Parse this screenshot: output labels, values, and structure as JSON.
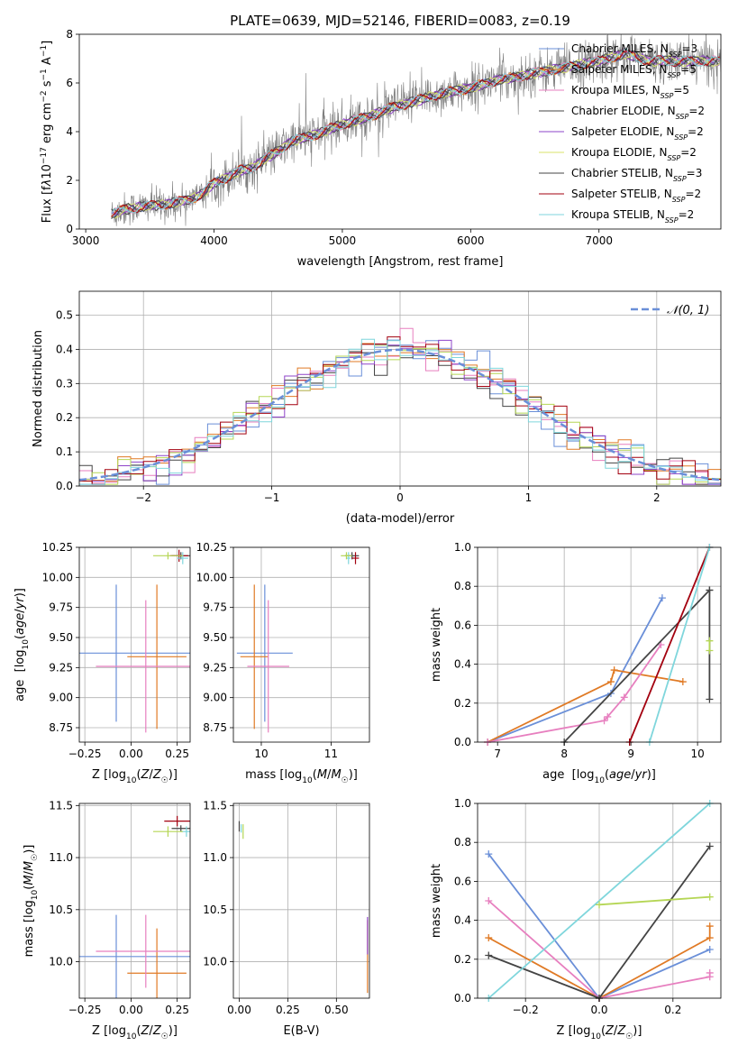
{
  "figure": {
    "title": "PLATE=0639, MJD=52146, FIBERID=0083, z=0.19",
    "colors": {
      "chabrier_miles": "#6a8fd8",
      "salpeter_miles": "#e07a25",
      "kroupa_miles": "#e77fbf",
      "elodie": "#b5d655",
      "stelib_chabrier": "#444444",
      "stelib_salpeter": "#a3000f",
      "stelib_kroupa": "#7fd6dc",
      "data": "#7f7f7f"
    }
  },
  "chart_data": [
    {
      "id": "spectrum",
      "type": "line",
      "title": "PLATE=0639, MJD=52146, FIBERID=0083, z=0.19",
      "xlabel": "wavelength [Angstrom, rest frame]",
      "ylabel_html": "Flux [f<tspan font-style='italic'>λ</tspan>10<tspan baseline-shift='super' font-size='9'>−17</tspan> erg cm<tspan baseline-shift='super' font-size='9'>−2</tspan> s<tspan baseline-shift='super' font-size='9'>−1</tspan> A<tspan baseline-shift='super' font-size='9'>−1</tspan>]",
      "xlim": [
        2950,
        7950
      ],
      "ylim": [
        0,
        8
      ],
      "xticks": [
        3000,
        4000,
        5000,
        6000,
        7000
      ],
      "yticks": [
        0,
        2,
        4,
        6,
        8
      ],
      "legend": [
        {
          "label": "Chabrier MILES, N",
          "sub": "SSP",
          "tail": "=3",
          "color": "#6a8fd8"
        },
        {
          "label": "Salpeter MILES, N",
          "sub": "SSP",
          "tail": "=5",
          "color": "#e07a25"
        },
        {
          "label": "Kroupa MILES, N",
          "sub": "SSP",
          "tail": "=5",
          "color": "#e77fbf"
        },
        {
          "label": "Chabrier ELODIE, N",
          "sub": "SSP",
          "tail": "=2",
          "color": "#444444"
        },
        {
          "label": "Salpeter ELODIE, N",
          "sub": "SSP",
          "tail": "=2",
          "color": "#8e44c9"
        },
        {
          "label": "Kroupa ELODIE, N",
          "sub": "SSP",
          "tail": "=2",
          "color": "#d9e36a"
        },
        {
          "label": "Chabrier STELIB, N",
          "sub": "SSP",
          "tail": "=3",
          "color": "#444444"
        },
        {
          "label": "Salpeter STELIB, N",
          "sub": "SSP",
          "tail": "=2",
          "color": "#a3000f"
        },
        {
          "label": "Kroupa STELIB, N",
          "sub": "SSP",
          "tail": "=2",
          "color": "#7fd6dc"
        }
      ],
      "continuum": {
        "x": [
          3200,
          3300,
          3400,
          3500,
          3600,
          3700,
          3800,
          3900,
          4000,
          4100,
          4200,
          4300,
          4400,
          4500,
          4600,
          4800,
          5000,
          5200,
          5400,
          5600,
          5800,
          6000,
          6200,
          6400,
          6600,
          6800,
          7000,
          7200,
          7400
        ],
        "y": [
          0.6,
          0.8,
          0.9,
          0.95,
          1.0,
          1.1,
          1.2,
          1.4,
          1.9,
          2.1,
          2.4,
          2.5,
          2.9,
          3.2,
          3.6,
          3.9,
          4.3,
          4.6,
          5.0,
          5.3,
          5.6,
          5.8,
          6.1,
          6.3,
          6.5,
          6.7,
          6.9,
          7.2,
          6.9
        ]
      }
    },
    {
      "id": "residuals",
      "type": "line",
      "xlabel": "(data-model)/error",
      "ylabel": "Normed distribution",
      "xlim": [
        -2.5,
        2.5
      ],
      "ylim": [
        0,
        0.57
      ],
      "xticks": [
        -2,
        -1,
        0,
        1,
        2
      ],
      "yticks": [
        0.0,
        0.1,
        0.2,
        0.3,
        0.4,
        0.5
      ],
      "legend_label": "𝒩(0, 1)",
      "bin_width": 0.1
    },
    {
      "id": "age_vs_Z",
      "type": "scatter",
      "xlabel": "Z [log10(Z/Z☉)]",
      "ylabel": "age [log10(age/yr)]",
      "xlim": [
        -0.28,
        0.32
      ],
      "ylim": [
        8.63,
        10.25
      ],
      "xticks": [
        -0.25,
        0.0,
        0.25
      ],
      "yticks": [
        8.75,
        9.0,
        9.25,
        9.5,
        9.75,
        10.0,
        10.25
      ],
      "points": [
        {
          "x": -0.08,
          "y": 9.37,
          "xerr": 0.4,
          "yerr": 0.57,
          "color": "#6a8fd8"
        },
        {
          "x": 0.14,
          "y": 9.34,
          "xerr": 0.16,
          "yerr": 0.6,
          "color": "#e07a25"
        },
        {
          "x": 0.08,
          "y": 9.26,
          "xerr": 0.27,
          "yerr": 0.55,
          "color": "#e77fbf"
        },
        {
          "x": 0.27,
          "y": 10.18,
          "xerr": 0.05,
          "yerr": 0.03,
          "color": "#444444"
        },
        {
          "x": 0.26,
          "y": 10.18,
          "xerr": 0.05,
          "yerr": 0.05,
          "color": "#a3000f"
        },
        {
          "x": 0.28,
          "y": 10.16,
          "xerr": 0.03,
          "yerr": 0.05,
          "color": "#7fd6dc"
        },
        {
          "x": 0.2,
          "y": 10.18,
          "xerr": 0.08,
          "yerr": 0.03,
          "color": "#b5d655"
        }
      ]
    },
    {
      "id": "age_vs_mass",
      "type": "scatter",
      "xlabel": "mass [log10(M/M☉)]",
      "xlim": [
        9.6,
        11.55
      ],
      "ylim": [
        8.63,
        10.25
      ],
      "xticks": [
        10,
        11
      ],
      "yticks": [
        8.75,
        9.0,
        9.25,
        9.5,
        9.75,
        10.0,
        10.25
      ],
      "points": [
        {
          "x": 10.05,
          "y": 9.37,
          "xerr": 0.4,
          "yerr": 0.57,
          "color": "#6a8fd8"
        },
        {
          "x": 9.9,
          "y": 9.34,
          "xerr": 0.2,
          "yerr": 0.6,
          "color": "#e07a25"
        },
        {
          "x": 10.1,
          "y": 9.26,
          "xerr": 0.3,
          "yerr": 0.55,
          "color": "#e77fbf"
        },
        {
          "x": 11.3,
          "y": 10.18,
          "xerr": 0.1,
          "yerr": 0.03,
          "color": "#444444"
        },
        {
          "x": 11.35,
          "y": 10.16,
          "xerr": 0.05,
          "yerr": 0.05,
          "color": "#a3000f"
        },
        {
          "x": 11.25,
          "y": 10.16,
          "xerr": 0.03,
          "yerr": 0.05,
          "color": "#7fd6dc"
        },
        {
          "x": 11.22,
          "y": 10.18,
          "xerr": 0.08,
          "yerr": 0.03,
          "color": "#b5d655"
        }
      ]
    },
    {
      "id": "weight_vs_age",
      "type": "line",
      "xlabel": "age [log10(age/yr)]",
      "ylabel": "mass weight",
      "xlim": [
        6.7,
        10.35
      ],
      "ylim": [
        0,
        1
      ],
      "xticks": [
        7,
        8,
        9,
        10
      ],
      "yticks": [
        0.0,
        0.2,
        0.4,
        0.6,
        0.8,
        1.0
      ],
      "series": [
        {
          "color": "#6a8fd8",
          "x": [
            6.85,
            8.7,
            9.47
          ],
          "y": [
            0.0,
            0.25,
            0.74
          ]
        },
        {
          "color": "#e07a25",
          "x": [
            6.85,
            8.7,
            8.75,
            9.78
          ],
          "y": [
            0.0,
            0.31,
            0.37,
            0.31
          ]
        },
        {
          "color": "#e77fbf",
          "x": [
            6.85,
            8.6,
            8.65,
            8.9,
            9.45
          ],
          "y": [
            0.0,
            0.11,
            0.13,
            0.23,
            0.5
          ]
        },
        {
          "color": "#444444",
          "x": [
            8.0,
            10.18
          ],
          "y": [
            0.0,
            0.78
          ]
        },
        {
          "color": "#444444",
          "x": [
            10.18,
            10.18
          ],
          "y": [
            0.22,
            0.78
          ]
        },
        {
          "color": "#a3000f",
          "x": [
            8.98,
            10.18
          ],
          "y": [
            0.0,
            1.0
          ]
        },
        {
          "color": "#7fd6dc",
          "x": [
            9.28,
            10.18
          ],
          "y": [
            0.0,
            1.0
          ]
        },
        {
          "color": "#b5d655",
          "x": [
            10.18,
            10.18
          ],
          "y": [
            0.47,
            0.52
          ]
        }
      ]
    },
    {
      "id": "mass_vs_Z",
      "type": "scatter",
      "xlabel": "Z [log10(Z/Z☉)]",
      "ylabel": "mass [log10(M/M☉)]",
      "xlim": [
        -0.28,
        0.32
      ],
      "ylim": [
        9.65,
        11.52
      ],
      "xticks": [
        -0.25,
        0.0,
        0.25
      ],
      "yticks": [
        10.0,
        10.5,
        11.0,
        11.5
      ],
      "points": [
        {
          "x": -0.08,
          "y": 10.05,
          "xerr": 0.4,
          "yerr": 0.4,
          "color": "#6a8fd8"
        },
        {
          "x": 0.14,
          "y": 9.89,
          "xerr": 0.16,
          "yerr": 0.43,
          "color": "#e07a25"
        },
        {
          "x": 0.08,
          "y": 10.1,
          "xerr": 0.27,
          "yerr": 0.35,
          "color": "#e77fbf"
        },
        {
          "x": 0.27,
          "y": 11.28,
          "xerr": 0.05,
          "yerr": 0.03,
          "color": "#444444"
        },
        {
          "x": 0.25,
          "y": 11.35,
          "xerr": 0.07,
          "yerr": 0.05,
          "color": "#a3000f"
        },
        {
          "x": 0.3,
          "y": 11.25,
          "xerr": 0.03,
          "yerr": 0.05,
          "color": "#7fd6dc"
        },
        {
          "x": 0.2,
          "y": 11.25,
          "xerr": 0.08,
          "yerr": 0.05,
          "color": "#b5d655"
        }
      ]
    },
    {
      "id": "mass_vs_ebv",
      "type": "scatter",
      "xlabel": "E(B-V)",
      "xlim": [
        -0.03,
        0.67
      ],
      "ylim": [
        9.65,
        11.52
      ],
      "xticks": [
        0.0,
        0.25,
        0.5
      ],
      "yticks": [
        10.0,
        10.5,
        11.0,
        11.5
      ],
      "points": [
        {
          "x": 0.0,
          "y": 11.3,
          "xerr": 0.0,
          "yerr": 0.05,
          "color": "#444444"
        },
        {
          "x": 0.02,
          "y": 11.25,
          "xerr": 0.0,
          "yerr": 0.07,
          "color": "#b5d655"
        },
        {
          "x": 0.01,
          "y": 11.28,
          "xerr": 0.0,
          "yerr": 0.04,
          "color": "#7fd6dc"
        },
        {
          "x": 0.66,
          "y": 10.05,
          "xerr": 0.0,
          "yerr": 0.35,
          "color": "#e07a25"
        },
        {
          "x": 0.66,
          "y": 10.25,
          "xerr": 0.0,
          "yerr": 0.18,
          "color": "#8e44c9"
        }
      ]
    },
    {
      "id": "weight_vs_Z",
      "type": "line",
      "xlabel": "Z [log10(Z/Z☉)]",
      "ylabel": "mass weight",
      "xlim": [
        -0.33,
        0.33
      ],
      "ylim": [
        0,
        1
      ],
      "xticks": [
        -0.2,
        0.0,
        0.2
      ],
      "yticks": [
        0.0,
        0.2,
        0.4,
        0.6,
        0.8,
        1.0
      ],
      "series": [
        {
          "color": "#6a8fd8",
          "x": [
            -0.3,
            0.0,
            0.3
          ],
          "y": [
            0.74,
            0.0,
            0.25
          ]
        },
        {
          "color": "#e07a25",
          "x": [
            -0.3,
            0.0,
            0.3,
            0.3
          ],
          "y": [
            0.31,
            0.0,
            0.31,
            0.37
          ]
        },
        {
          "color": "#e77fbf",
          "x": [
            -0.3,
            0.0,
            0.3,
            0.3
          ],
          "y": [
            0.5,
            0.0,
            0.11,
            0.13
          ]
        },
        {
          "color": "#444444",
          "x": [
            -0.3,
            0.0,
            0.3
          ],
          "y": [
            0.22,
            0.0,
            0.78
          ]
        },
        {
          "color": "#7fd6dc",
          "x": [
            -0.3,
            0.3
          ],
          "y": [
            0.0,
            1.0
          ]
        },
        {
          "color": "#b5d655",
          "x": [
            0.0,
            0.3
          ],
          "y": [
            0.48,
            0.52
          ]
        }
      ]
    }
  ]
}
